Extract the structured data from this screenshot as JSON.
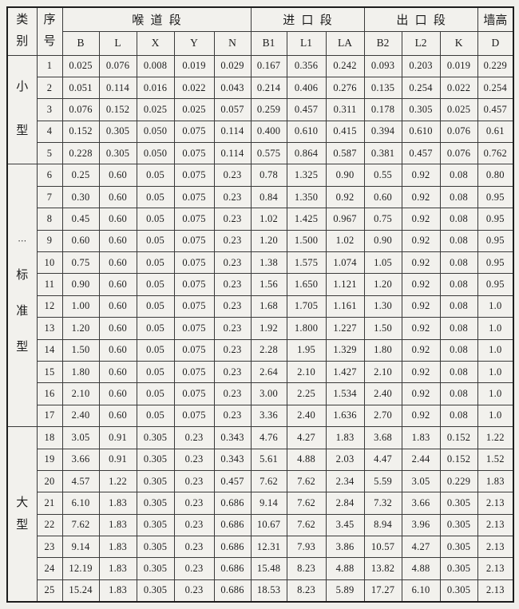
{
  "table": {
    "header": {
      "category_chars": [
        "类",
        "别"
      ],
      "serial_chars": [
        "序",
        "号"
      ],
      "groups": [
        {
          "label": "喉道段",
          "colspan": 5
        },
        {
          "label": "进口段",
          "colspan": 3
        },
        {
          "label": "出口段",
          "colspan": 3
        },
        {
          "label": "墙高",
          "colspan": 1
        }
      ],
      "columns": [
        "B",
        "L",
        "X",
        "Y",
        "N",
        "B1",
        "L1",
        "LA",
        "B2",
        "L2",
        "K",
        "D"
      ]
    },
    "sections": [
      {
        "type": "small",
        "category_chars": [
          "小",
          "型"
        ],
        "rows": [
          {
            "num": "1",
            "values": [
              "0.025",
              "0.076",
              "0.008",
              "0.019",
              "0.029",
              "0.167",
              "0.356",
              "0.242",
              "0.093",
              "0.203",
              "0.019",
              "0.229"
            ]
          },
          {
            "num": "2",
            "values": [
              "0.051",
              "0.114",
              "0.016",
              "0.022",
              "0.043",
              "0.214",
              "0.406",
              "0.276",
              "0.135",
              "0.254",
              "0.022",
              "0.254"
            ]
          },
          {
            "num": "3",
            "values": [
              "0.076",
              "0.152",
              "0.025",
              "0.025",
              "0.057",
              "0.259",
              "0.457",
              "0.311",
              "0.178",
              "0.305",
              "0.025",
              "0.457"
            ]
          },
          {
            "num": "4",
            "values": [
              "0.152",
              "0.305",
              "0.050",
              "0.075",
              "0.114",
              "0.400",
              "0.610",
              "0.415",
              "0.394",
              "0.610",
              "0.076",
              "0.61"
            ]
          },
          {
            "num": "5",
            "values": [
              "0.228",
              "0.305",
              "0.050",
              "0.075",
              "0.114",
              "0.575",
              "0.864",
              "0.587",
              "0.381",
              "0.457",
              "0.076",
              "0.762"
            ]
          }
        ]
      },
      {
        "type": "standard",
        "category_chars": [
          "⋯",
          "标",
          "准",
          "型"
        ],
        "rows": [
          {
            "num": "6",
            "values": [
              "0.25",
              "0.60",
              "0.05",
              "0.075",
              "0.23",
              "0.78",
              "1.325",
              "0.90",
              "0.55",
              "0.92",
              "0.08",
              "0.80"
            ]
          },
          {
            "num": "7",
            "values": [
              "0.30",
              "0.60",
              "0.05",
              "0.075",
              "0.23",
              "0.84",
              "1.350",
              "0.92",
              "0.60",
              "0.92",
              "0.08",
              "0.95"
            ]
          },
          {
            "num": "8",
            "values": [
              "0.45",
              "0.60",
              "0.05",
              "0.075",
              "0.23",
              "1.02",
              "1.425",
              "0.967",
              "0.75",
              "0.92",
              "0.08",
              "0.95"
            ]
          },
          {
            "num": "9",
            "values": [
              "0.60",
              "0.60",
              "0.05",
              "0.075",
              "0.23",
              "1.20",
              "1.500",
              "1.02",
              "0.90",
              "0.92",
              "0.08",
              "0.95"
            ]
          },
          {
            "num": "10",
            "values": [
              "0.75",
              "0.60",
              "0.05",
              "0.075",
              "0.23",
              "1.38",
              "1.575",
              "1.074",
              "1.05",
              "0.92",
              "0.08",
              "0.95"
            ]
          },
          {
            "num": "11",
            "values": [
              "0.90",
              "0.60",
              "0.05",
              "0.075",
              "0.23",
              "1.56",
              "1.650",
              "1.121",
              "1.20",
              "0.92",
              "0.08",
              "0.95"
            ]
          },
          {
            "num": "12",
            "values": [
              "1.00",
              "0.60",
              "0.05",
              "0.075",
              "0.23",
              "1.68",
              "1.705",
              "1.161",
              "1.30",
              "0.92",
              "0.08",
              "1.0"
            ]
          },
          {
            "num": "13",
            "values": [
              "1.20",
              "0.60",
              "0.05",
              "0.075",
              "0.23",
              "1.92",
              "1.800",
              "1.227",
              "1.50",
              "0.92",
              "0.08",
              "1.0"
            ]
          },
          {
            "num": "14",
            "values": [
              "1.50",
              "0.60",
              "0.05",
              "0.075",
              "0.23",
              "2.28",
              "1.95",
              "1.329",
              "1.80",
              "0.92",
              "0.08",
              "1.0"
            ]
          },
          {
            "num": "15",
            "values": [
              "1.80",
              "0.60",
              "0.05",
              "0.075",
              "0.23",
              "2.64",
              "2.10",
              "1.427",
              "2.10",
              "0.92",
              "0.08",
              "1.0"
            ]
          },
          {
            "num": "16",
            "values": [
              "2.10",
              "0.60",
              "0.05",
              "0.075",
              "0.23",
              "3.00",
              "2.25",
              "1.534",
              "2.40",
              "0.92",
              "0.08",
              "1.0"
            ]
          },
          {
            "num": "17",
            "values": [
              "2.40",
              "0.60",
              "0.05",
              "0.075",
              "0.23",
              "3.36",
              "2.40",
              "1.636",
              "2.70",
              "0.92",
              "0.08",
              "1.0"
            ]
          }
        ]
      },
      {
        "type": "large",
        "category_chars": [
          "大",
          "型"
        ],
        "rows": [
          {
            "num": "18",
            "values": [
              "3.05",
              "0.91",
              "0.305",
              "0.23",
              "0.343",
              "4.76",
              "4.27",
              "1.83",
              "3.68",
              "1.83",
              "0.152",
              "1.22"
            ]
          },
          {
            "num": "19",
            "values": [
              "3.66",
              "0.91",
              "0.305",
              "0.23",
              "0.343",
              "5.61",
              "4.88",
              "2.03",
              "4.47",
              "2.44",
              "0.152",
              "1.52"
            ]
          },
          {
            "num": "20",
            "values": [
              "4.57",
              "1.22",
              "0.305",
              "0.23",
              "0.457",
              "7.62",
              "7.62",
              "2.34",
              "5.59",
              "3.05",
              "0.229",
              "1.83"
            ]
          },
          {
            "num": "21",
            "values": [
              "6.10",
              "1.83",
              "0.305",
              "0.23",
              "0.686",
              "9.14",
              "7.62",
              "2.84",
              "7.32",
              "3.66",
              "0.305",
              "2.13"
            ]
          },
          {
            "num": "22",
            "values": [
              "7.62",
              "1.83",
              "0.305",
              "0.23",
              "0.686",
              "10.67",
              "7.62",
              "3.45",
              "8.94",
              "3.96",
              "0.305",
              "2.13"
            ]
          },
          {
            "num": "23",
            "values": [
              "9.14",
              "1.83",
              "0.305",
              "0.23",
              "0.686",
              "12.31",
              "7.93",
              "3.86",
              "10.57",
              "4.27",
              "0.305",
              "2.13"
            ]
          },
          {
            "num": "24",
            "values": [
              "12.19",
              "1.83",
              "0.305",
              "0.23",
              "0.686",
              "15.48",
              "8.23",
              "4.88",
              "13.82",
              "4.88",
              "0.305",
              "2.13"
            ]
          },
          {
            "num": "25",
            "values": [
              "15.24",
              "1.83",
              "0.305",
              "0.23",
              "0.686",
              "18.53",
              "8.23",
              "5.89",
              "17.27",
              "6.10",
              "0.305",
              "2.13"
            ]
          }
        ]
      }
    ]
  },
  "colors": {
    "page_background": "#f0efeb",
    "grid_line": "#3a3a3a",
    "outer_border": "#1d1d1d",
    "text": "#1c1c1c"
  }
}
